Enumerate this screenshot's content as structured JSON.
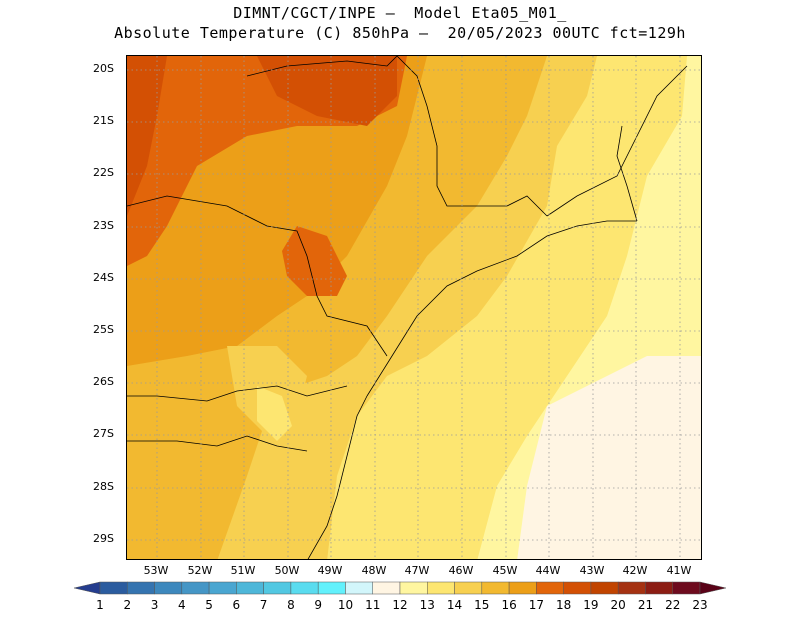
{
  "title": {
    "line1": "DIMNT/CGCT/INPE –  Model Eta05_M01_",
    "line2": "Absolute Temperature (C) 850hPa –  20/05/2023 00UTC fct=129h"
  },
  "map": {
    "lat_labels": [
      "20S",
      "21S",
      "22S",
      "23S",
      "24S",
      "25S",
      "26S",
      "27S",
      "28S",
      "29S"
    ],
    "lon_labels": [
      "53W",
      "52W",
      "51W",
      "50W",
      "49W",
      "48W",
      "47W",
      "46W",
      "45W",
      "44W",
      "43W",
      "42W",
      "41W"
    ],
    "grid": "dotted",
    "field": "Absolute Temperature 850hPa"
  },
  "colorbar": {
    "levels": [
      "1",
      "2",
      "3",
      "4",
      "5",
      "6",
      "7",
      "8",
      "9",
      "10",
      "11",
      "12",
      "13",
      "14",
      "15",
      "16",
      "17",
      "18",
      "19",
      "20",
      "21",
      "22",
      "23"
    ],
    "colors": [
      "#253d8e",
      "#2b5c9f",
      "#3574b0",
      "#3d88bd",
      "#4596c6",
      "#4aa6d1",
      "#4eb7d9",
      "#52c8e2",
      "#5adcef",
      "#62f1fc",
      "#d2f6fb",
      "#fff5e3",
      "#fff6a0",
      "#fde671",
      "#f7d050",
      "#f2b930",
      "#ec9f18",
      "#e2650a",
      "#d35004",
      "#c14400",
      "#a53212",
      "#8c1d14",
      "#6e0b1e",
      "#5a0318"
    ],
    "orientation": "horizontal"
  }
}
